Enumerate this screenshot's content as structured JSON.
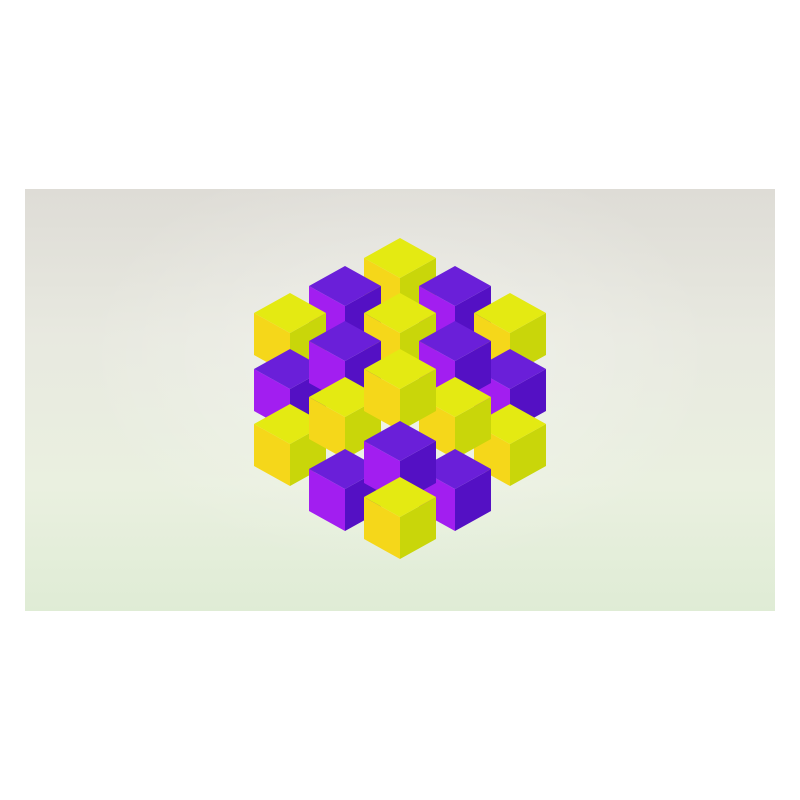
{
  "image": {
    "subject": "isometric-cube-lattice",
    "colors": {
      "page_background": "#ffffff",
      "yellow_top": "#e4ea12",
      "yellow_left": "#f5d71a",
      "yellow_right": "#c9d60a",
      "purple_top": "#6a1fd9",
      "purple_left": "#a21ef0",
      "purple_right": "#5410c4"
    },
    "cubes": [
      {
        "id": "r0-top",
        "color": "yellow",
        "layer": 0
      },
      {
        "id": "r1-left",
        "color": "purple",
        "layer": 0
      },
      {
        "id": "r1-right",
        "color": "purple",
        "layer": 0
      },
      {
        "id": "r2-left",
        "color": "yellow",
        "layer": 0
      },
      {
        "id": "r2-center",
        "color": "yellow",
        "layer": 1
      },
      {
        "id": "r2-right",
        "color": "yellow",
        "layer": 0
      },
      {
        "id": "r3-left",
        "color": "purple",
        "layer": 1
      },
      {
        "id": "r3-right",
        "color": "purple",
        "layer": 1
      },
      {
        "id": "r4-left",
        "color": "purple",
        "layer": 0
      },
      {
        "id": "r4-center",
        "color": "yellow",
        "layer": 2
      },
      {
        "id": "r4-right",
        "color": "purple",
        "layer": 0
      },
      {
        "id": "r5-left",
        "color": "yellow",
        "layer": 1
      },
      {
        "id": "r5-right",
        "color": "yellow",
        "layer": 1
      },
      {
        "id": "r6-left",
        "color": "yellow",
        "layer": 0
      },
      {
        "id": "r6-center",
        "color": "purple",
        "layer": 2
      },
      {
        "id": "r6-right",
        "color": "yellow",
        "layer": 0
      },
      {
        "id": "r7-left",
        "color": "purple",
        "layer": 1
      },
      {
        "id": "r7-right",
        "color": "purple",
        "layer": 1
      },
      {
        "id": "r8-bottom",
        "color": "yellow",
        "layer": 2
      }
    ]
  }
}
